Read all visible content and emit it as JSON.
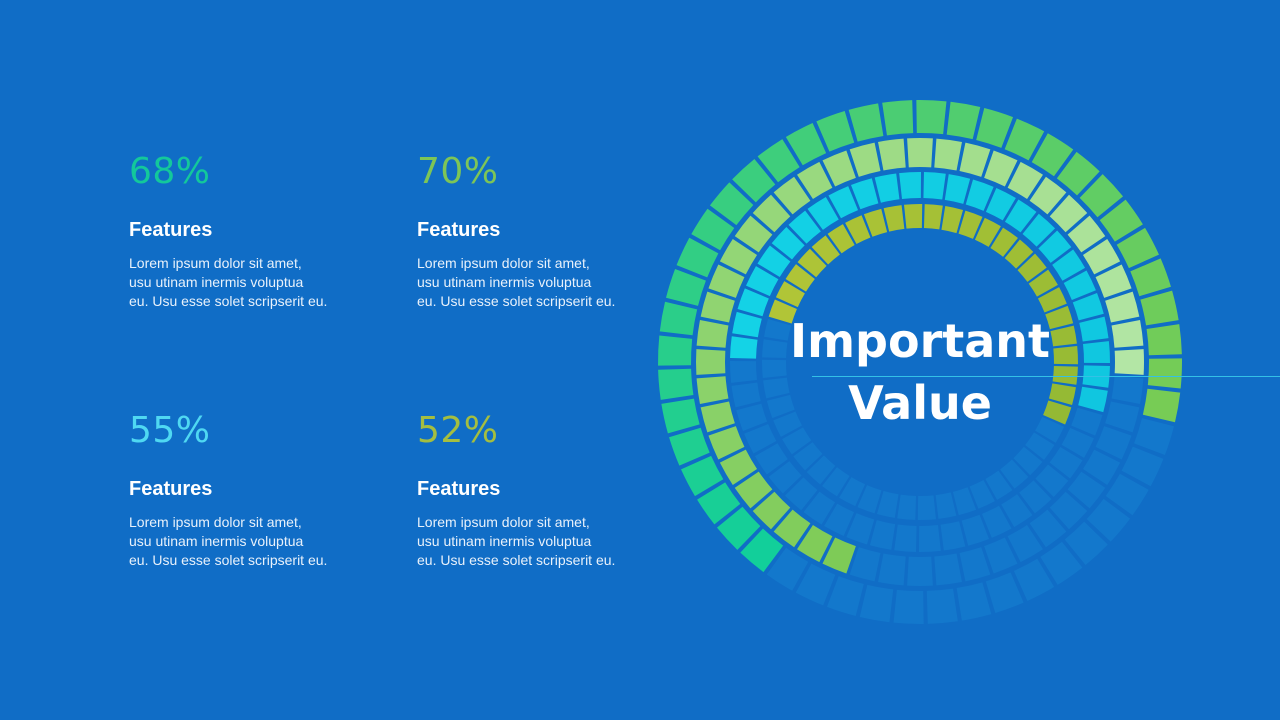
{
  "center": {
    "line1": "Important",
    "line2": "Value"
  },
  "features": [
    {
      "percent": "68%",
      "title": "Features",
      "lines": [
        "Lorem ipsum dolor sit amet,",
        "usu utinam inermis voluptua",
        "eu. Usu esse solet scripserit eu."
      ]
    },
    {
      "percent": "70%",
      "title": "Features",
      "lines": [
        "Lorem ipsum dolor sit amet,",
        "usu utinam inermis voluptua",
        "eu. Usu esse solet scripserit eu."
      ]
    },
    {
      "percent": "55%",
      "title": "Features",
      "lines": [
        "Lorem ipsum dolor sit amet,",
        "usu utinam inermis voluptua",
        "eu. Usu esse solet scripserit eu."
      ]
    },
    {
      "percent": "52%",
      "title": "Features",
      "lines": [
        "Lorem ipsum dolor sit amet,",
        "usu utinam inermis voluptua",
        "eu. Usu esse solet scripserit eu."
      ]
    }
  ],
  "chart_data": {
    "type": "radial-bar",
    "title": "",
    "segments_per_ring": 48,
    "series": [
      {
        "value": 68,
        "color_start": "#12cf9a",
        "color_end": "#77cc55"
      },
      {
        "value": 70,
        "color_start": "#7ecb57",
        "color_end": "#b3e6a5"
      },
      {
        "value": 55,
        "color_start": "#14d3e6",
        "color_end": "#10c6e0"
      },
      {
        "value": 52,
        "color_start": "#b1c537",
        "color_end": "#94b934"
      }
    ],
    "track_color": "#1378cc"
  },
  "colors": {
    "background": "#106dc6",
    "pct": [
      "#13c89b",
      "#7dc557",
      "#4fd8f2",
      "#a4be40"
    ]
  }
}
